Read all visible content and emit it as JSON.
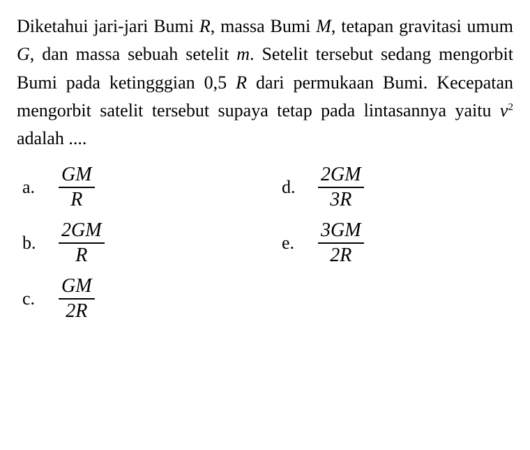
{
  "question": {
    "text_parts": [
      "Diketahui jari-jari Bumi ",
      ", massa Bumi ",
      ", tetapan gravitasi umum ",
      ", dan massa sebuah setelit ",
      ". Setelit tersebut sedang mengorbit Bumi pada ketingggian 0,5 ",
      " dari permukaan Bumi. Kecepatan mengorbit satelit tersebut supaya tetap pada lintasannya yaitu ",
      " adalah ...."
    ],
    "vars": {
      "R": "R",
      "M": "M",
      "G": "G",
      "m": "m",
      "R2": "R",
      "v": "v",
      "exp": "2"
    }
  },
  "options": {
    "a": {
      "label": "a.",
      "num": "GM",
      "den": "R"
    },
    "b": {
      "label": "b.",
      "num": "2GM",
      "den": "R"
    },
    "c": {
      "label": "c.",
      "num": "GM",
      "den": "2R"
    },
    "d": {
      "label": "d.",
      "num": "2GM",
      "den": "3R"
    },
    "e": {
      "label": "e.",
      "num": "3GM",
      "den": "2R"
    }
  },
  "style": {
    "background_color": "#ffffff",
    "text_color": "#000000",
    "font_family": "Times New Roman",
    "question_fontsize": 26,
    "option_fontsize": 26,
    "fraction_fontsize": 28,
    "line_height": 1.55
  }
}
